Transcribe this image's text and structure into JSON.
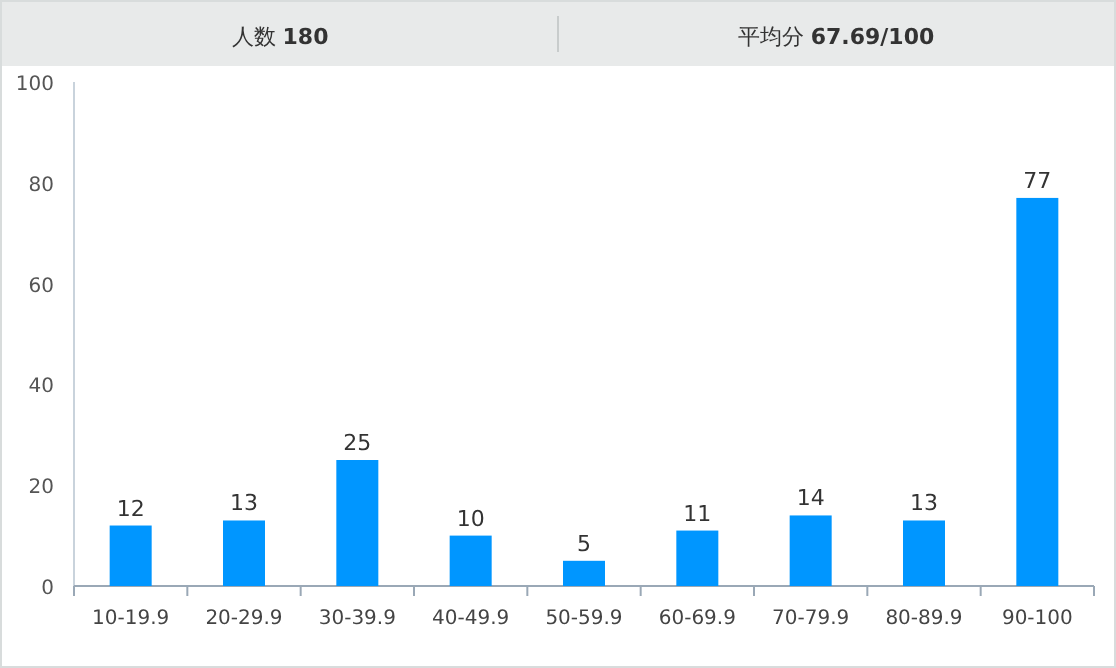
{
  "chart_data": {
    "type": "bar",
    "title": "人数 **180**",
    "subtitle": "平均分 **67.69/100**",
    "categories": [
      "10-19.9",
      "20-29.9",
      "30-39.9",
      "40-49.9",
      "50-59.9",
      "60-69.9",
      "70-79.9",
      "80-89.9",
      "90-100"
    ],
    "values": [
      12,
      13,
      25,
      10,
      5,
      11,
      14,
      13,
      77
    ],
    "color": "#0096ff",
    "ylim": [
      0,
      100
    ],
    "yticks": [
      0,
      20,
      40,
      60,
      80,
      100
    ],
    "data_labels": true,
    "grid": false
  }
}
